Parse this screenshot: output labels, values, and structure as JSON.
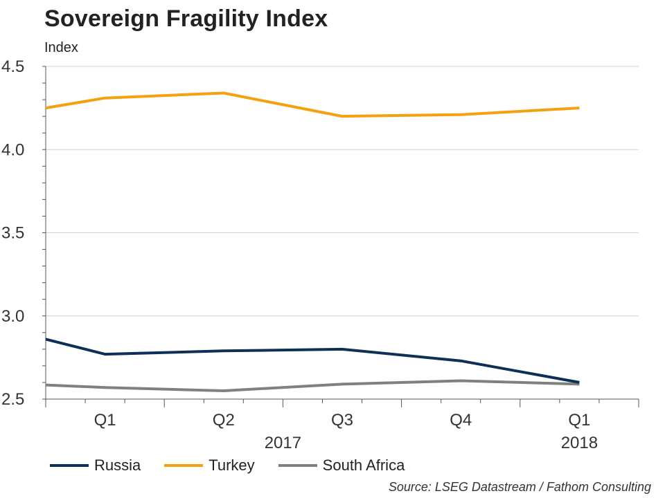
{
  "chart_data": {
    "type": "line",
    "title": "Sovereign Fragility Index",
    "ylabel": "Index",
    "xlabel": "",
    "ylim": [
      2.5,
      4.5
    ],
    "yticks": [
      "2.5",
      "3.0",
      "3.5",
      "4.0",
      "4.5"
    ],
    "yticks_values": [
      2.5,
      3.0,
      3.5,
      4.0,
      4.5
    ],
    "x_labels": [
      "Q1",
      "Q2",
      "Q3",
      "Q4",
      "Q1"
    ],
    "year_labels": [
      "2017",
      "2018"
    ],
    "series": [
      {
        "name": "Russia",
        "color": "#0e2f56",
        "values": [
          2.86,
          2.77,
          2.79,
          2.8,
          2.73,
          2.6
        ]
      },
      {
        "name": "Turkey",
        "color": "#f5a00f",
        "values": [
          4.25,
          4.31,
          4.34,
          4.2,
          4.21,
          4.25
        ]
      },
      {
        "name": "South Africa",
        "color": "#808080",
        "values": [
          2.585,
          2.57,
          2.55,
          2.59,
          2.61,
          2.59
        ]
      }
    ],
    "grid": true,
    "legend_position": "bottom-left",
    "source": "Source: LSEG Datastream / Fathom Consulting"
  }
}
